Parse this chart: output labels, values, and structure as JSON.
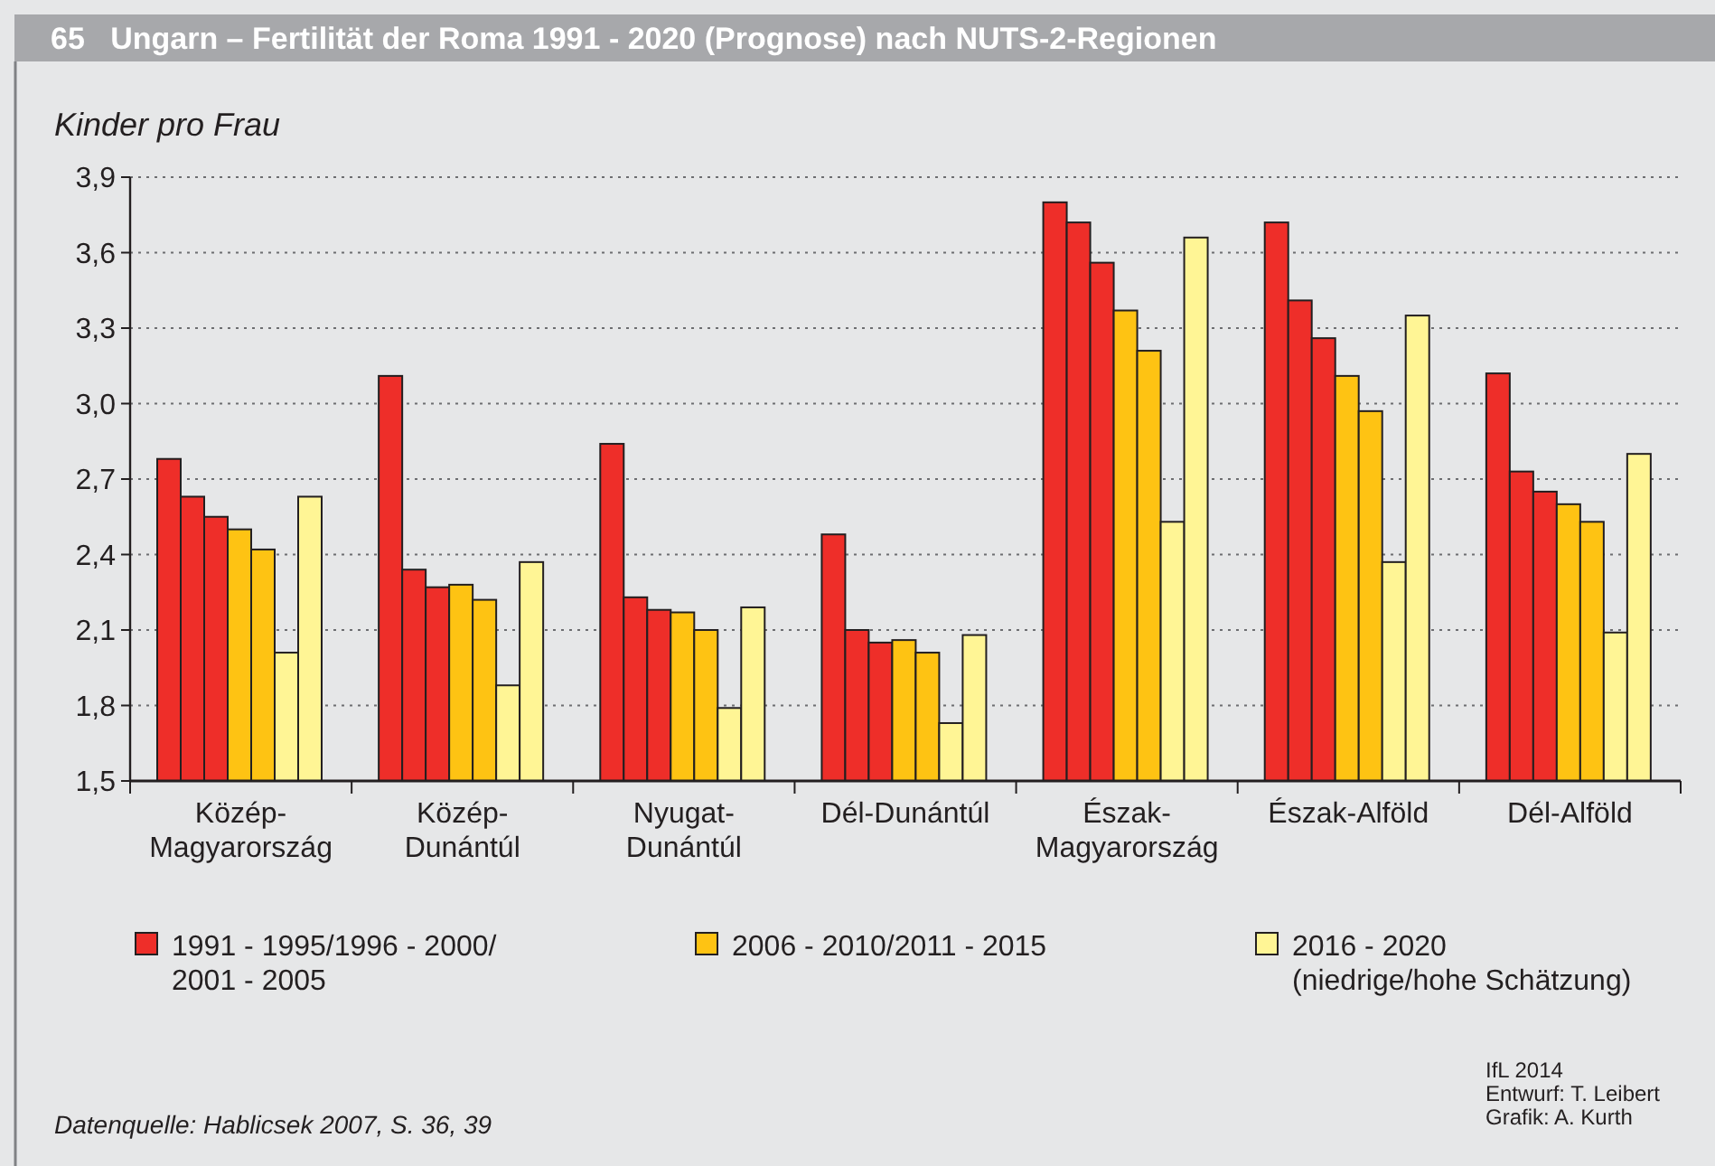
{
  "chart_data": {
    "type": "bar",
    "title": "65   Ungarn – Fertilität der Roma 1991 - 2020 (Prognose) nach NUTS-2-Regionen",
    "ylabel": "Kinder pro Frau",
    "categories": [
      "Közép-Magyarország",
      "Közép-Dunántúl",
      "Nyugat-Dunántúl",
      "Dél-Dunántúl",
      "Észak-Magyarország",
      "Észak-Alföld",
      "Dél-Alföld"
    ],
    "series": [
      {
        "name": "1991 - 1995/1996 - 2000/\n2001 - 2005",
        "color": "#ee2e29",
        "values": [
          2.78,
          3.11,
          2.84,
          2.48,
          3.8,
          3.72,
          3.12
        ]
      },
      {
        "color": "#ee2e29",
        "values": [
          2.63,
          2.34,
          2.23,
          2.1,
          3.72,
          3.41,
          2.73
        ]
      },
      {
        "color": "#ee2e29",
        "values": [
          2.55,
          2.27,
          2.18,
          2.05,
          3.56,
          3.26,
          2.65
        ]
      },
      {
        "name": "2006 - 2010/2011 - 2015",
        "color": "#fec313",
        "values": [
          2.5,
          2.28,
          2.17,
          2.06,
          3.37,
          3.11,
          2.6
        ]
      },
      {
        "color": "#fec313",
        "values": [
          2.42,
          2.22,
          2.1,
          2.01,
          3.21,
          2.97,
          2.53
        ]
      },
      {
        "name": "2016 - 2020\n(niedrige/hohe Schätzung)",
        "color": "#fff595",
        "values": [
          2.01,
          1.88,
          1.79,
          1.73,
          2.53,
          2.37,
          2.09
        ]
      },
      {
        "color": "#fff595",
        "values": [
          2.63,
          2.37,
          2.19,
          2.08,
          3.66,
          3.35,
          2.8
        ]
      }
    ],
    "ylim": [
      1.5,
      3.9
    ],
    "yticks": [
      {
        "value": 1.5,
        "label": "1,5"
      },
      {
        "value": 1.8,
        "label": "1,8"
      },
      {
        "value": 2.1,
        "label": "2,1"
      },
      {
        "value": 2.4,
        "label": "2,4"
      },
      {
        "value": 2.7,
        "label": "2,7"
      },
      {
        "value": 3.0,
        "label": "3,0"
      },
      {
        "value": 3.3,
        "label": "3,3"
      },
      {
        "value": 3.6,
        "label": "3,6"
      },
      {
        "value": 3.9,
        "label": "3,9"
      }
    ],
    "grid": "y",
    "legend": "bottom",
    "annotations": [
      "Datenquelle: Hablicsek 2007, S. 36, 39",
      "IfL 2014",
      "Entwurf: T. Leibert",
      "Grafik: A. Kurth"
    ]
  }
}
